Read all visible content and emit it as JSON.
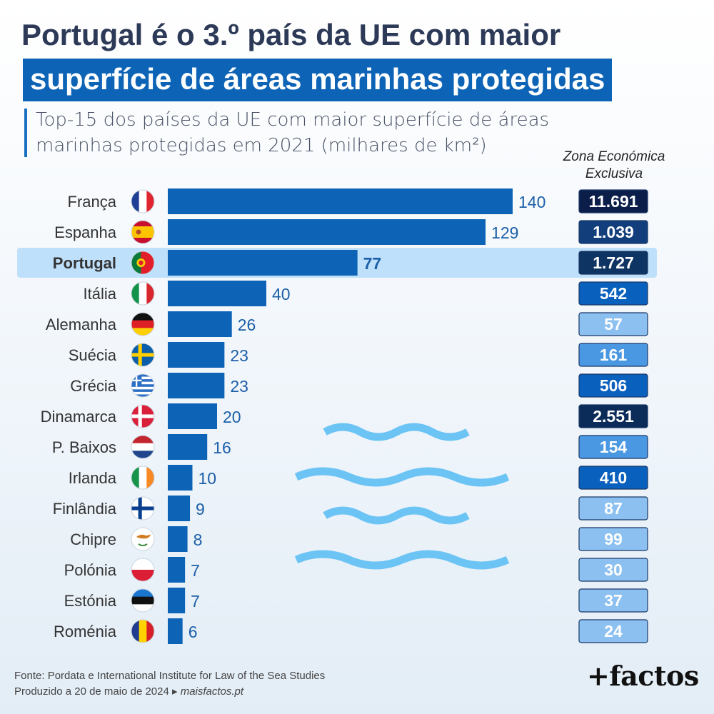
{
  "title": {
    "line1": "Portugal é o 3.º país da UE com maior",
    "line2": "superfície de áreas marinhas protegidas"
  },
  "subtitle": "Top-15 dos países da UE com maior superfície de áreas marinhas protegidas em 2021 (milhares de km²)",
  "zee_header": "Zona Económica\nExclusiva",
  "chart_data": {
    "type": "bar",
    "orientation": "horizontal",
    "categories": [
      "França",
      "Espanha",
      "Portugal",
      "Itália",
      "Alemanha",
      "Suécia",
      "Grécia",
      "Dinamarca",
      "P. Baixos",
      "Irlanda",
      "Finlândia",
      "Chipre",
      "Polónia",
      "Estónia",
      "Roménia"
    ],
    "values": [
      140,
      129,
      77,
      40,
      26,
      23,
      23,
      20,
      16,
      10,
      9,
      8,
      7,
      7,
      6
    ],
    "highlight": "Portugal",
    "zee_values": [
      "11.691",
      "1.039",
      "1.727",
      "542",
      "57",
      "161",
      "506",
      "2.551",
      "154",
      "410",
      "87",
      "99",
      "30",
      "37",
      "24"
    ],
    "zee_colors": [
      "#0b1e4a",
      "#123f7c",
      "#0e3464",
      "#0a60bd",
      "#8cc0f0",
      "#4a97e2",
      "#0a60bd",
      "#0b2b59",
      "#4a97e2",
      "#0a60bd",
      "#8cc0f0",
      "#8cc0f0",
      "#8cc0f0",
      "#8cc0f0",
      "#8cc0f0"
    ],
    "bar_color": "#0d64b6",
    "highlight_color": "#a2173a"
  },
  "flags": [
    "france-flag-icon",
    "spain-flag-icon",
    "portugal-flag-icon",
    "italy-flag-icon",
    "germany-flag-icon",
    "sweden-flag-icon",
    "greece-flag-icon",
    "denmark-flag-icon",
    "netherlands-flag-icon",
    "ireland-flag-icon",
    "finland-flag-icon",
    "cyprus-flag-icon",
    "poland-flag-icon",
    "estonia-flag-icon",
    "romania-flag-icon"
  ],
  "footer": {
    "source": "Fonte: Pordata e International Institute for Law of the Sea Studies",
    "produced": "Produzido a 20 de maio de 2024 ▸ ",
    "site": "maisfactos.pt"
  },
  "logo": "+factos"
}
